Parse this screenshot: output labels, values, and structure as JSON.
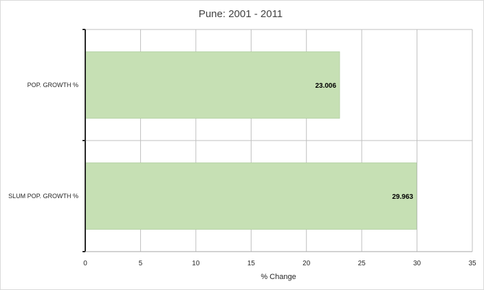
{
  "chart_data": {
    "type": "bar",
    "orientation": "horizontal",
    "title": "Pune: 2001 - 2011",
    "categories": [
      "POP. GROWTH %",
      "SLUM POP. GROWTH %"
    ],
    "values": [
      23.006,
      29.963
    ],
    "data_labels": [
      "23.006",
      "29.963"
    ],
    "xlabel": "% Change",
    "ylabel": "",
    "xlim": [
      0,
      35
    ],
    "x_ticks": [
      "0",
      "5",
      "10",
      "15",
      "20",
      "25",
      "30",
      "35"
    ],
    "grid": true,
    "legend": "none",
    "colors": {
      "bar": "#c6e0b4",
      "bar_edge": "#a9c99a",
      "grid": "#bfbfbf",
      "axis": "#262626"
    }
  }
}
